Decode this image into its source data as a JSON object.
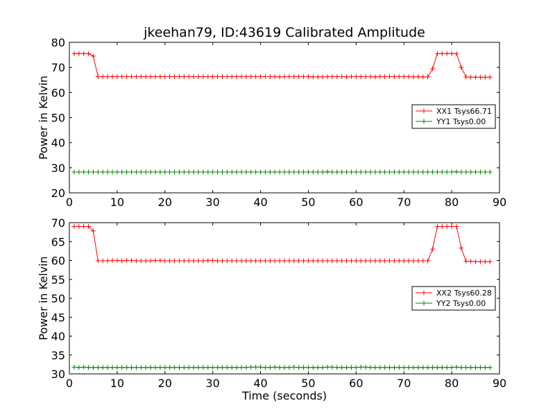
{
  "figure": {
    "title": "jkeehan79, ID:43619 Calibrated Amplitude",
    "xlabel": "Time (seconds)"
  },
  "chart_data": [
    {
      "type": "line",
      "title": "jkeehan79, ID:43619 Calibrated Amplitude",
      "xlabel": "",
      "ylabel": "Power in Kelvin",
      "xlim": [
        0,
        90
      ],
      "ylim": [
        20,
        80
      ],
      "xticks": [
        0,
        10,
        20,
        30,
        40,
        50,
        60,
        70,
        80,
        90
      ],
      "yticks": [
        20,
        30,
        40,
        50,
        60,
        70,
        80
      ],
      "grid": false,
      "legend_position": "right",
      "x": [
        1,
        2,
        3,
        4,
        5,
        6,
        7,
        8,
        9,
        10,
        11,
        12,
        13,
        14,
        15,
        16,
        17,
        18,
        19,
        20,
        21,
        22,
        23,
        24,
        25,
        26,
        27,
        28,
        29,
        30,
        31,
        32,
        33,
        34,
        35,
        36,
        37,
        38,
        39,
        40,
        41,
        42,
        43,
        44,
        45,
        46,
        47,
        48,
        49,
        50,
        51,
        52,
        53,
        54,
        55,
        56,
        57,
        58,
        59,
        60,
        61,
        62,
        63,
        64,
        65,
        66,
        67,
        68,
        69,
        70,
        71,
        72,
        73,
        74,
        75,
        76,
        77,
        78,
        79,
        80,
        81,
        82,
        83,
        84,
        85,
        86,
        87,
        88
      ],
      "series": [
        {
          "name": "XX1 Tsys66.71",
          "color": "#ff0000",
          "values": [
            75.5,
            75.5,
            75.5,
            75.5,
            74.5,
            66.3,
            66.3,
            66.3,
            66.3,
            66.3,
            66.3,
            66.3,
            66.3,
            66.3,
            66.3,
            66.3,
            66.3,
            66.3,
            66.3,
            66.3,
            66.3,
            66.3,
            66.3,
            66.3,
            66.3,
            66.3,
            66.3,
            66.3,
            66.3,
            66.3,
            66.3,
            66.3,
            66.3,
            66.3,
            66.3,
            66.3,
            66.3,
            66.3,
            66.3,
            66.3,
            66.3,
            66.3,
            66.3,
            66.2,
            66.3,
            66.3,
            66.3,
            66.3,
            66.3,
            66.3,
            66.2,
            66.2,
            66.2,
            66.3,
            66.3,
            66.3,
            66.3,
            66.2,
            66.3,
            66.3,
            66.3,
            66.3,
            66.3,
            66.2,
            66.3,
            66.3,
            66.3,
            66.3,
            66.3,
            66.3,
            66.3,
            66.2,
            66.3,
            66.2,
            66.2,
            69.5,
            75.5,
            75.5,
            75.5,
            75.5,
            75.5,
            70,
            66.2,
            66.1,
            66.1,
            66.1,
            66.1,
            66.1
          ]
        },
        {
          "name": "YY1 Tsys0.00",
          "color": "#008000",
          "values": [
            28.3,
            28.3,
            28.3,
            28.3,
            28.3,
            28.3,
            28.3,
            28.3,
            28.3,
            28.3,
            28.3,
            28.3,
            28.3,
            28.3,
            28.3,
            28.3,
            28.3,
            28.3,
            28.3,
            28.3,
            28.3,
            28.3,
            28.3,
            28.3,
            28.3,
            28.3,
            28.3,
            28.3,
            28.3,
            28.3,
            28.3,
            28.3,
            28.3,
            28.3,
            28.3,
            28.3,
            28.3,
            28.3,
            28.3,
            28.3,
            28.3,
            28.3,
            28.3,
            28.3,
            28.3,
            28.3,
            28.3,
            28.3,
            28.3,
            28.3,
            28.3,
            28.3,
            28.3,
            28.4,
            28.3,
            28.3,
            28.3,
            28.3,
            28.3,
            28.3,
            28.3,
            28.3,
            28.3,
            28.3,
            28.3,
            28.3,
            28.3,
            28.3,
            28.3,
            28.3,
            28.3,
            28.3,
            28.3,
            28.3,
            28.3,
            28.3,
            28.3,
            28.3,
            28.3,
            28.3,
            28.4,
            28.3,
            28.3,
            28.3,
            28.3,
            28.3,
            28.3,
            28.3
          ]
        }
      ]
    },
    {
      "type": "line",
      "title": "",
      "xlabel": "Time (seconds)",
      "ylabel": "Power in Kelvin",
      "xlim": [
        0,
        90
      ],
      "ylim": [
        30,
        70
      ],
      "xticks": [
        0,
        10,
        20,
        30,
        40,
        50,
        60,
        70,
        80,
        90
      ],
      "yticks": [
        30,
        35,
        40,
        45,
        50,
        55,
        60,
        65,
        70
      ],
      "grid": false,
      "legend_position": "right",
      "x": [
        1,
        2,
        3,
        4,
        5,
        6,
        7,
        8,
        9,
        10,
        11,
        12,
        13,
        14,
        15,
        16,
        17,
        18,
        19,
        20,
        21,
        22,
        23,
        24,
        25,
        26,
        27,
        28,
        29,
        30,
        31,
        32,
        33,
        34,
        35,
        36,
        37,
        38,
        39,
        40,
        41,
        42,
        43,
        44,
        45,
        46,
        47,
        48,
        49,
        50,
        51,
        52,
        53,
        54,
        55,
        56,
        57,
        58,
        59,
        60,
        61,
        62,
        63,
        64,
        65,
        66,
        67,
        68,
        69,
        70,
        71,
        72,
        73,
        74,
        75,
        76,
        77,
        78,
        79,
        80,
        81,
        82,
        83,
        84,
        85,
        86,
        87,
        88
      ],
      "series": [
        {
          "name": "XX2 Tsys60.28",
          "color": "#ff0000",
          "values": [
            69,
            69,
            69,
            69,
            67.8,
            59.9,
            59.9,
            59.9,
            60,
            60,
            59.9,
            60,
            60,
            59.9,
            59.9,
            59.9,
            59.9,
            60,
            60,
            59.9,
            59.9,
            59.9,
            59.9,
            59.9,
            59.9,
            59.9,
            59.9,
            59.9,
            60,
            60,
            59.9,
            59.9,
            59.9,
            59.9,
            59.9,
            59.9,
            59.9,
            59.9,
            59.9,
            59.9,
            59.9,
            59.9,
            59.9,
            59.9,
            59.9,
            59.9,
            59.9,
            59.9,
            59.9,
            59.9,
            59.9,
            59.9,
            59.9,
            59.9,
            59.9,
            59.9,
            59.9,
            59.9,
            59.9,
            59.9,
            59.9,
            59.9,
            59.9,
            59.9,
            59.9,
            59.9,
            59.9,
            59.9,
            59.9,
            59.9,
            59.9,
            59.9,
            59.9,
            59.9,
            59.9,
            63,
            69,
            69,
            69,
            69,
            69,
            63.3,
            59.8,
            59.8,
            59.7,
            59.7,
            59.7,
            59.7
          ]
        },
        {
          "name": "YY2 Tsys0.00",
          "color": "#008000",
          "values": [
            31.8,
            31.7,
            31.8,
            31.7,
            31.7,
            31.7,
            31.7,
            31.7,
            31.7,
            31.7,
            31.7,
            31.7,
            31.7,
            31.7,
            31.7,
            31.7,
            31.7,
            31.7,
            31.7,
            31.7,
            31.7,
            31.7,
            31.7,
            31.7,
            31.7,
            31.7,
            31.7,
            31.7,
            31.7,
            31.7,
            31.7,
            31.7,
            31.7,
            31.7,
            31.7,
            31.7,
            31.7,
            31.8,
            31.8,
            31.8,
            31.7,
            31.7,
            31.8,
            31.7,
            31.7,
            31.7,
            31.8,
            31.7,
            31.7,
            31.7,
            31.7,
            31.7,
            31.7,
            31.8,
            31.8,
            31.7,
            31.7,
            31.7,
            31.7,
            31.7,
            31.8,
            31.8,
            31.7,
            31.7,
            31.7,
            31.7,
            31.7,
            31.7,
            31.7,
            31.7,
            31.7,
            31.7,
            31.7,
            31.7,
            31.7,
            31.7,
            31.7,
            31.7,
            31.7,
            31.7,
            31.8,
            31.7,
            31.7,
            31.7,
            31.7,
            31.7,
            31.7,
            31.7
          ]
        }
      ]
    }
  ]
}
